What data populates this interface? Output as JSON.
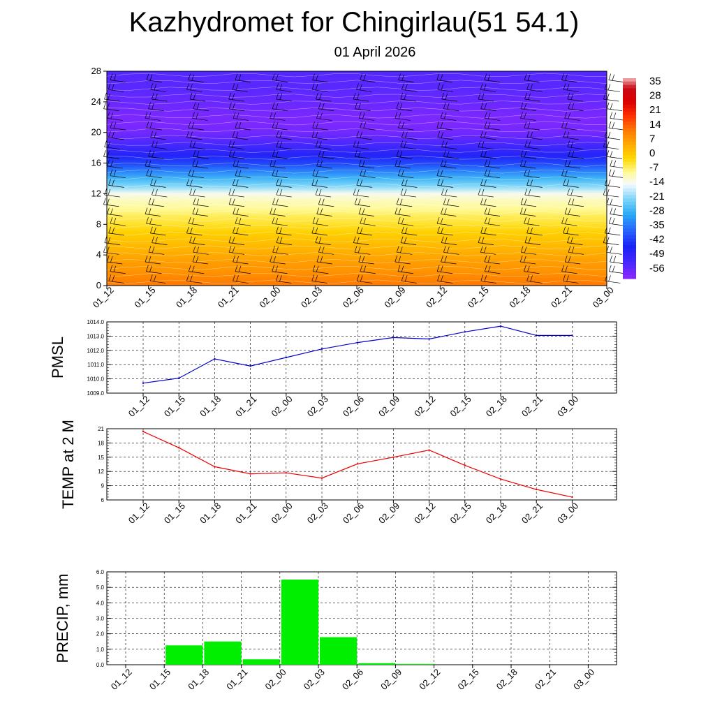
{
  "title": "Kazhydromet for Chingirlau(51 54.1)",
  "subtitle": "01 April 2026",
  "chart_data": [
    {
      "type": "heatmap",
      "name": "temperature cross-section with wind barbs",
      "title": "Kazhydromet for Chingirlau(51 54.1)",
      "subtitle": "01 April 2026",
      "x_categories": [
        "01_12",
        "01_15",
        "01_18",
        "01_21",
        "02_00",
        "02_03",
        "02_06",
        "02_09",
        "02_12",
        "02_15",
        "02_18",
        "02_21",
        "03_00"
      ],
      "y_ticks": [
        0,
        4,
        8,
        12,
        16,
        20,
        24,
        28
      ],
      "ylim": [
        0,
        28
      ],
      "levels": [
        0,
        1,
        2,
        3,
        4,
        5,
        6,
        7,
        8,
        9,
        10,
        11,
        12,
        13,
        14,
        15,
        16,
        17,
        18,
        19,
        20,
        21,
        22,
        23,
        24,
        25,
        26,
        27,
        28
      ],
      "temperature_profile": [
        14,
        12,
        10,
        9,
        7,
        5,
        3,
        1,
        -2,
        -4,
        -7,
        -9,
        -12,
        -20,
        -26,
        -33,
        -40,
        -46,
        -50,
        -54,
        -57,
        -58,
        -58,
        -57,
        -56,
        -55,
        -54,
        -54,
        -53
      ],
      "colorbar": {
        "labels": [
          "35",
          "28",
          "21",
          "14",
          "7",
          "0",
          "-7",
          "-14",
          "-21",
          "-28",
          "-35",
          "-42",
          "-49",
          "-56"
        ],
        "range": [
          -60,
          40
        ]
      }
    },
    {
      "type": "line",
      "name": "PMSL",
      "ylabel": "PMSL",
      "categories": [
        "01_12",
        "01_15",
        "01_18",
        "01_21",
        "02_00",
        "02_03",
        "02_06",
        "02_09",
        "02_12",
        "02_15",
        "02_18",
        "02_21",
        "03_00"
      ],
      "values": [
        1009.7,
        1010.05,
        1011.4,
        1010.9,
        1011.5,
        1012.1,
        1012.55,
        1012.9,
        1012.8,
        1013.3,
        1013.7,
        1013.05,
        1013.05
      ],
      "ylim": [
        1009.0,
        1014.0
      ],
      "y_ticks": [
        "1009.0",
        "1010.0",
        "1011.0",
        "1012.0",
        "1013.0",
        "1014.0"
      ],
      "color": "#0000cc"
    },
    {
      "type": "line",
      "name": "TEMP at 2 M",
      "ylabel": "TEMP at 2 M",
      "categories": [
        "01_12",
        "01_15",
        "01_18",
        "01_21",
        "02_00",
        "02_03",
        "02_06",
        "02_09",
        "02_12",
        "02_15",
        "02_18",
        "02_21",
        "03_00"
      ],
      "values": [
        20.4,
        17.0,
        13.0,
        11.5,
        11.7,
        10.6,
        13.6,
        15.0,
        16.5,
        13.3,
        10.4,
        8.2,
        6.6
      ],
      "ylim": [
        6,
        21
      ],
      "y_ticks": [
        "6",
        "9",
        "12",
        "15",
        "18",
        "21"
      ],
      "color": "#ee0000"
    },
    {
      "type": "bar",
      "name": "PRECIP, mm",
      "ylabel": "PRECIP, mm",
      "categories": [
        "01_12",
        "01_15",
        "01_18",
        "01_21",
        "02_00",
        "02_03",
        "02_06",
        "02_09",
        "02_12",
        "02_15",
        "02_18",
        "02_21",
        "03_00"
      ],
      "values": [
        0,
        1.25,
        1.5,
        0.35,
        5.5,
        1.78,
        0.1,
        0.05,
        0,
        0,
        0,
        0,
        0
      ],
      "ylim": [
        0,
        6.0
      ],
      "y_ticks": [
        "0.0",
        "1.0",
        "2.0",
        "3.0",
        "4.0",
        "5.0",
        "6.0"
      ],
      "color": "#00ee00"
    }
  ]
}
